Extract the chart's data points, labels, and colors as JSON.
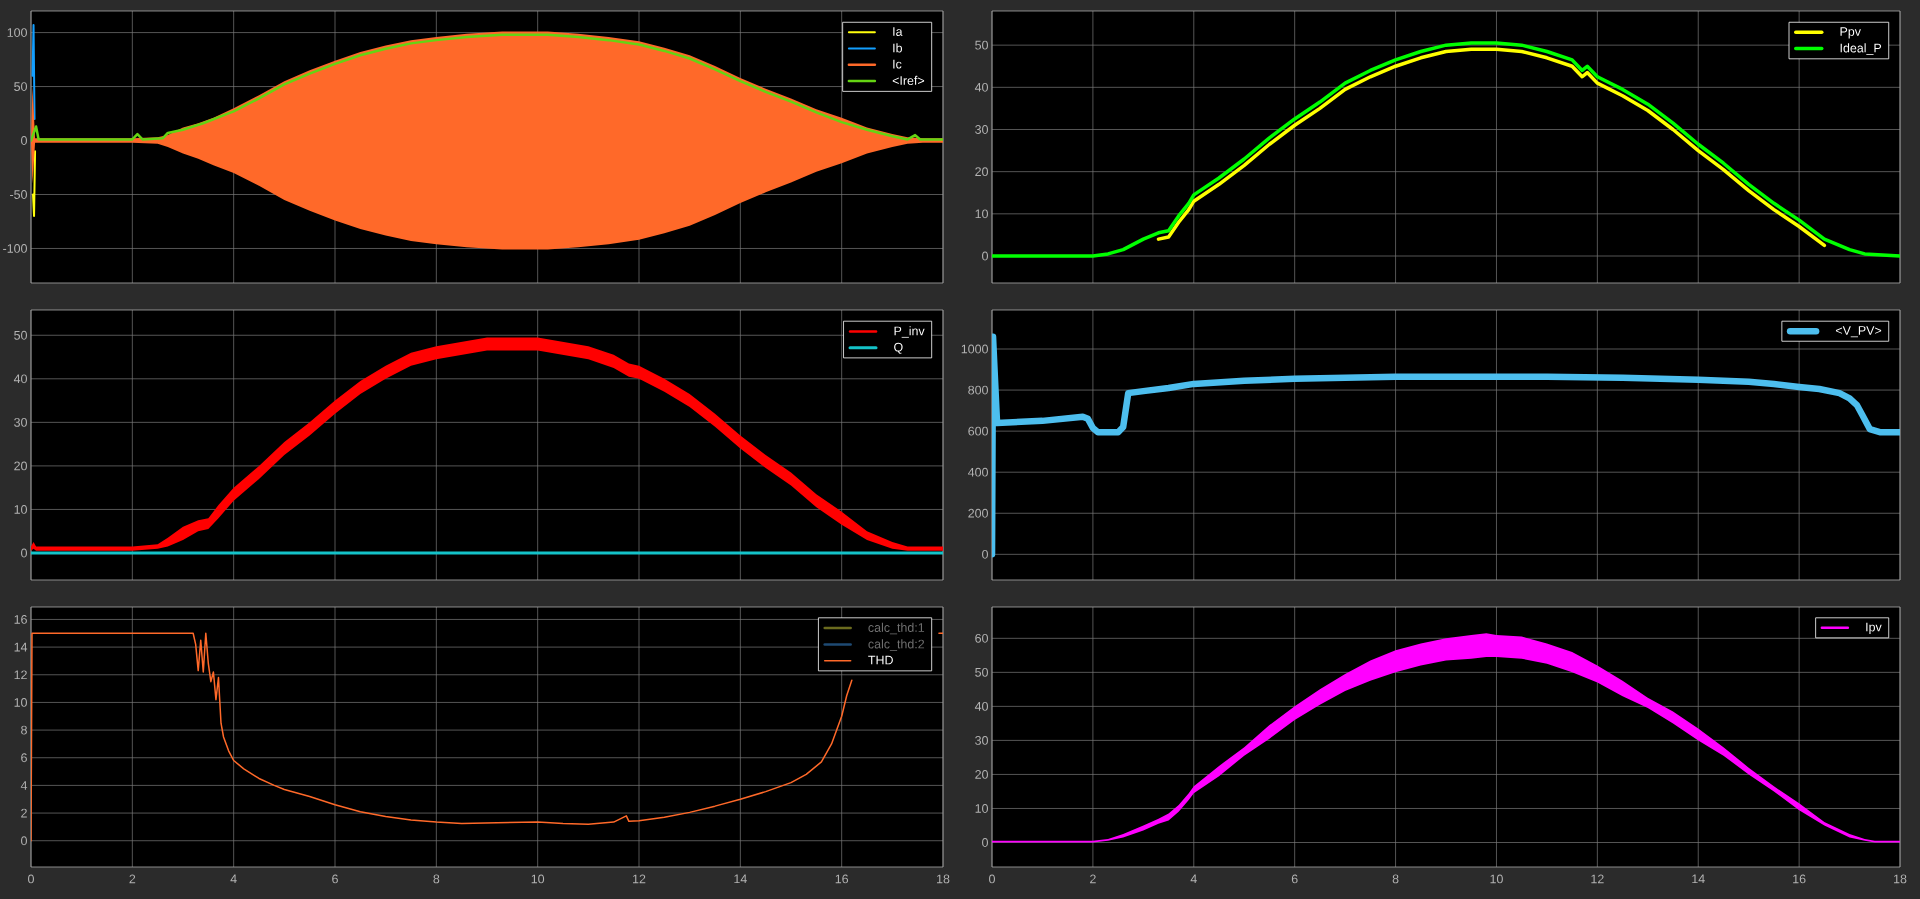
{
  "chart_data": [
    {
      "type": "line",
      "xlim": [
        0,
        18
      ],
      "xticks": [
        0,
        2,
        4,
        6,
        8,
        10,
        12,
        14,
        16,
        18
      ],
      "ylim": [
        -132,
        120
      ],
      "yticks": [
        -100,
        -50,
        0,
        50,
        100
      ],
      "grid": true,
      "legend": "top right",
      "tick_labels": "y",
      "series": [
        {
          "name": "Ia",
          "color": "#ffff0d",
          "x": [
            0.04,
            0.06,
            0.08
          ],
          "values": [
            -50,
            -70,
            -10
          ]
        },
        {
          "name": "Ib",
          "color": "#139fff",
          "x": [
            0.03,
            0.05,
            0.07
          ],
          "values": [
            60,
            107,
            20
          ]
        },
        {
          "name": "Ic",
          "color": "#ff6929",
          "x": [
            0,
            0.03,
            0.08,
            2,
            2.5,
            2.7,
            3,
            3.3,
            3.6,
            4,
            4.5,
            5,
            5.5,
            6,
            6.5,
            7,
            7.5,
            8,
            8.6,
            9.3,
            10.2,
            10.8,
            11.4,
            12,
            12.5,
            13,
            13.5,
            14,
            14.5,
            15,
            15.5,
            16,
            16.5,
            17,
            17.3,
            17.6,
            18
          ],
          "values": [
            null,
            null,
            null,
            null,
            null,
            null,
            null,
            null,
            null,
            null,
            null,
            null,
            null,
            null,
            null,
            null,
            null,
            null,
            null,
            null,
            null,
            null,
            null,
            null,
            null,
            null,
            null,
            null,
            null,
            null,
            null,
            null,
            null,
            null,
            null,
            null,
            null
          ],
          "upper": [
            2,
            50,
            2,
            2,
            3,
            5,
            12,
            16,
            21,
            30,
            42,
            55,
            65,
            74,
            82,
            88,
            93,
            96,
            99,
            101,
            101,
            99,
            96,
            92,
            86,
            79,
            69,
            58,
            48,
            39,
            29,
            21,
            12,
            6,
            3,
            2,
            2
          ],
          "lower": [
            -2,
            -40,
            -2,
            -2,
            -3,
            -6,
            -12,
            -17,
            -23,
            -30,
            -42,
            -55,
            -65,
            -74,
            -82,
            -88,
            -93,
            -96,
            -99,
            -101,
            -101,
            -99,
            -96,
            -92,
            -86,
            -79,
            -69,
            -58,
            -48,
            -39,
            -29,
            -21,
            -12,
            -6,
            -3,
            -2,
            -2
          ]
        },
        {
          "name": "<Iref>",
          "color": "#64d413",
          "x": [
            0,
            0.1,
            0.15,
            2,
            2.1,
            2.2,
            2.6,
            2.7,
            3,
            3.4,
            4,
            4.5,
            5,
            5.5,
            6,
            6.5,
            7,
            7.5,
            8,
            8.6,
            9.3,
            10.2,
            10.8,
            11.4,
            12,
            12.5,
            13,
            13.5,
            14,
            14.5,
            15,
            15.5,
            16,
            16.5,
            17,
            17.3,
            17.45,
            17.55,
            18
          ],
          "values": [
            0,
            13,
            1,
            1,
            6,
            1,
            2,
            7,
            10,
            16,
            27,
            39,
            52,
            62,
            71,
            79,
            85,
            90,
            93,
            96,
            98,
            98,
            96,
            93,
            89,
            83,
            76,
            66,
            55,
            45,
            36,
            26,
            17,
            10,
            4,
            1,
            5,
            1,
            1
          ]
        }
      ]
    },
    {
      "type": "line",
      "xlim": [
        0,
        18
      ],
      "xticks": [
        0,
        2,
        4,
        6,
        8,
        10,
        12,
        14,
        16,
        18
      ],
      "ylim": [
        -6.4,
        58.1
      ],
      "yticks": [
        0,
        10,
        20,
        30,
        40,
        50
      ],
      "grid": true,
      "legend": "top right",
      "tick_labels": "y",
      "series": [
        {
          "name": "Ppv",
          "color": "#ffff00",
          "x": [
            3.3,
            3.5,
            3.7,
            3.9,
            4,
            4.5,
            5,
            5.5,
            6,
            6.5,
            7,
            7.5,
            8,
            8.5,
            9,
            9.5,
            10,
            10.5,
            11,
            11.5,
            11.7,
            11.8,
            12,
            12.5,
            13,
            13.5,
            14,
            14.5,
            15,
            15.5,
            16,
            16.5
          ],
          "values": [
            4,
            4.5,
            8,
            11,
            13,
            17,
            21.5,
            26.5,
            31,
            35,
            39.5,
            42.5,
            45,
            47,
            48.5,
            49,
            49,
            48.5,
            47,
            45,
            42.5,
            43.5,
            41,
            38,
            34.5,
            30,
            25,
            20.5,
            15.5,
            11,
            7,
            2.5
          ]
        },
        {
          "name": "Ideal_P",
          "color": "#00ff00",
          "x": [
            0,
            2,
            2.3,
            2.6,
            3,
            3.3,
            3.5,
            3.7,
            3.9,
            4,
            4.5,
            5,
            5.5,
            6,
            6.5,
            7,
            7.5,
            8,
            8.5,
            9,
            9.5,
            10,
            10.5,
            11,
            11.5,
            11.7,
            11.8,
            12,
            12.5,
            13,
            13.5,
            14,
            14.5,
            15,
            15.5,
            16,
            16.5,
            17,
            17.3,
            18
          ],
          "values": [
            0,
            0,
            0.5,
            1.5,
            4,
            5.5,
            6,
            9.5,
            12.5,
            14.5,
            18.5,
            23,
            28,
            32.5,
            36.5,
            41,
            44,
            46.5,
            48.5,
            50,
            50.5,
            50.5,
            50,
            48.5,
            46.5,
            44,
            45,
            42.5,
            39.5,
            36,
            31.5,
            26.5,
            22,
            17,
            12.5,
            8.5,
            4,
            1.5,
            0.5,
            0
          ]
        }
      ]
    },
    {
      "type": "line",
      "xlim": [
        0,
        18
      ],
      "xticks": [
        0,
        2,
        4,
        6,
        8,
        10,
        12,
        14,
        16,
        18
      ],
      "ylim": [
        -6.2,
        55.8
      ],
      "yticks": [
        0,
        10,
        20,
        30,
        40,
        50
      ],
      "grid": true,
      "legend": "top right",
      "tick_labels": "y",
      "series": [
        {
          "name": "P_inv",
          "color": "#ff0000",
          "x": [
            0,
            0.05,
            0.1,
            2,
            2.5,
            2.7,
            3,
            3.3,
            3.5,
            3.7,
            4,
            4.5,
            5,
            5.5,
            6,
            6.5,
            7,
            7.5,
            8,
            9,
            10,
            11,
            11.5,
            11.8,
            12,
            12.5,
            13,
            13.5,
            14,
            14.5,
            15,
            15.5,
            16,
            16.5,
            17,
            17.3,
            18
          ],
          "values": [
            null,
            null,
            null,
            null,
            null,
            null,
            null,
            null,
            null,
            null,
            null,
            null,
            null,
            null,
            null,
            null,
            null,
            null,
            null,
            null,
            null,
            null,
            null,
            null,
            null,
            null,
            null,
            null,
            null,
            null,
            null,
            null,
            null,
            null,
            null,
            null,
            null
          ],
          "upper": [
            1.5,
            2.5,
            1.5,
            1.5,
            2,
            3.5,
            6,
            7.5,
            8,
            11,
            15,
            20,
            25.5,
            30,
            35,
            39.5,
            43,
            46,
            47.5,
            49.5,
            49.5,
            47.5,
            45.5,
            43.5,
            43,
            40,
            36.5,
            32,
            27,
            22.5,
            18.5,
            13.5,
            9.5,
            5,
            2.5,
            1.5,
            1.5
          ],
          "lower": [
            0.5,
            1,
            0.5,
            0.5,
            1,
            1.5,
            3,
            5,
            5.5,
            8,
            12,
            17,
            22.5,
            27,
            32,
            36.5,
            40,
            43,
            44.5,
            46.5,
            46.5,
            44.5,
            42.5,
            40.5,
            40,
            37,
            33.5,
            29,
            24,
            19.5,
            15.5,
            10.5,
            6.5,
            3,
            1,
            0.5,
            0.5
          ]
        },
        {
          "name": "Q",
          "color": "#14c3c9",
          "x": [
            0,
            18
          ],
          "values": [
            0,
            0
          ]
        }
      ]
    },
    {
      "type": "line",
      "xlim": [
        0,
        18
      ],
      "xticks": [
        0,
        2,
        4,
        6,
        8,
        10,
        12,
        14,
        16,
        18
      ],
      "ylim": [
        -125,
        1190
      ],
      "yticks": [
        0,
        200,
        400,
        600,
        800,
        1000
      ],
      "grid": true,
      "legend": "top right",
      "tick_labels": "y",
      "series": [
        {
          "name": "<V_PV>",
          "color": "#4dbeee",
          "x": [
            0,
            0.02,
            0.05,
            0.1,
            1,
            1.8,
            1.9,
            2,
            2.1,
            2.5,
            2.6,
            2.7,
            3,
            3.5,
            4,
            5,
            6,
            8,
            11,
            12.5,
            14,
            15,
            15.5,
            16,
            16.4,
            16.8,
            17,
            17.15,
            17.25,
            17.4,
            17.6,
            18
          ],
          "values": [
            0,
            1060,
            900,
            640,
            650,
            670,
            660,
            615,
            595,
            595,
            620,
            785,
            795,
            810,
            830,
            845,
            855,
            865,
            865,
            860,
            850,
            840,
            830,
            815,
            805,
            785,
            760,
            725,
            680,
            610,
            595,
            595
          ]
        }
      ]
    },
    {
      "type": "line",
      "xlim": [
        0,
        18
      ],
      "xticks": [
        0,
        2,
        4,
        6,
        8,
        10,
        12,
        14,
        16,
        18
      ],
      "ylim": [
        -1.9,
        16.9
      ],
      "yticks": [
        0,
        2,
        4,
        6,
        8,
        10,
        12,
        14,
        16
      ],
      "grid": true,
      "legend": "top right",
      "series": [
        {
          "name": "calc_thd:1",
          "color": "#6b6b1e"
        },
        {
          "name": "calc_thd:2",
          "color": "#1e4a73"
        },
        {
          "name": "THD",
          "color": "#ff6929",
          "x": [
            0,
            0.02,
            3.2,
            3.25,
            3.3,
            3.35,
            3.4,
            3.45,
            3.5,
            3.55,
            3.6,
            3.65,
            3.7,
            3.75,
            3.8,
            3.9,
            4,
            4.2,
            4.5,
            4.8,
            5,
            5.5,
            6,
            6.5,
            7,
            7.5,
            8,
            8.5,
            9.2,
            10,
            10.5,
            11,
            11.5,
            11.75,
            11.8,
            12,
            12.5,
            13,
            13.5,
            14,
            14.5,
            15,
            15.3,
            15.6,
            15.8,
            16,
            16.1,
            16.2,
            17,
            17.92,
            18
          ],
          "values": [
            0,
            15,
            15,
            14.2,
            12.3,
            14.5,
            12.2,
            15,
            12.8,
            11.5,
            12.2,
            10.2,
            11.8,
            8.5,
            7.5,
            6.5,
            5.8,
            5.2,
            4.5,
            4,
            3.7,
            3.2,
            2.6,
            2.1,
            1.75,
            1.5,
            1.35,
            1.25,
            1.3,
            1.35,
            1.25,
            1.2,
            1.35,
            1.8,
            1.4,
            1.45,
            1.7,
            2.05,
            2.5,
            3,
            3.55,
            4.2,
            4.8,
            5.7,
            7,
            9,
            10.5,
            11.6,
            null,
            15,
            15
          ]
        }
      ]
    },
    {
      "type": "line",
      "xlim": [
        0,
        18
      ],
      "xticks": [
        0,
        2,
        4,
        6,
        8,
        10,
        12,
        14,
        16,
        18
      ],
      "ylim": [
        -7.2,
        69.2
      ],
      "yticks": [
        0,
        10,
        20,
        30,
        40,
        50,
        60
      ],
      "grid": true,
      "legend": "top right",
      "series": [
        {
          "name": "Ipv",
          "color": "#ff00ff",
          "x": [
            0,
            2,
            2.3,
            2.6,
            3,
            3.3,
            3.5,
            3.7,
            3.9,
            4,
            4.5,
            5,
            5.5,
            6,
            6.5,
            7,
            7.5,
            8,
            8.5,
            9,
            9.5,
            9.8,
            10,
            10.5,
            11,
            11.5,
            12,
            12.5,
            13,
            13.5,
            14,
            14.5,
            15,
            15.5,
            16,
            16.5,
            17,
            17.3,
            17.5,
            18
          ],
          "values": [
            null,
            null,
            null,
            null,
            null,
            null,
            null,
            null,
            null,
            null,
            null,
            null,
            null,
            null,
            null,
            null,
            null,
            null,
            null,
            null,
            null,
            null,
            null,
            null,
            null,
            null,
            null,
            null,
            null,
            null,
            null,
            null,
            null,
            null,
            null,
            null,
            null,
            null,
            null,
            null
          ],
          "upper": [
            0.5,
            0.5,
            1,
            2.5,
            5,
            7,
            8.5,
            11,
            14.5,
            16.5,
            22.5,
            28,
            34.5,
            40,
            45,
            49.5,
            53.5,
            56.5,
            58.5,
            60,
            61,
            61.5,
            61,
            60.5,
            58.5,
            56,
            52,
            47.5,
            42.5,
            38.5,
            33.5,
            28,
            22,
            16.5,
            11.5,
            6,
            2.5,
            1,
            0.5,
            0.5
          ],
          "lower": [
            0,
            0,
            0.5,
            1.5,
            3.5,
            5.5,
            6.5,
            9,
            12.5,
            14.5,
            19.5,
            25.5,
            30.5,
            36,
            40.5,
            44.5,
            47.5,
            50,
            52,
            53.5,
            54,
            54.5,
            54.5,
            54,
            52.5,
            50,
            47,
            43,
            39.5,
            35,
            30,
            25.5,
            20,
            15,
            9.5,
            5,
            1.5,
            0.5,
            0,
            0
          ]
        }
      ]
    }
  ]
}
